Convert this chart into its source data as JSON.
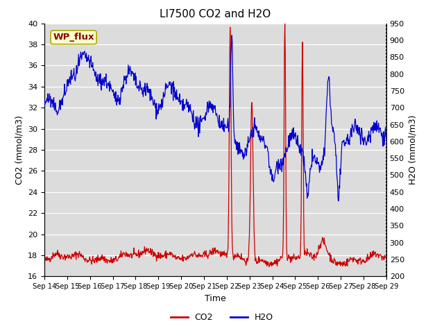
{
  "title": "LI7500 CO2 and H2O",
  "xlabel": "Time",
  "ylabel_left": "CO2 (mmol/m3)",
  "ylabel_right": "H2O (mmol/m3)",
  "annotation": "WP_flux",
  "co2_color": "#cc0000",
  "h2o_color": "#0000cc",
  "background_color": "#dcdcdc",
  "ylim_left": [
    16,
    40
  ],
  "ylim_right": [
    200,
    950
  ],
  "yticks_left": [
    16,
    18,
    20,
    22,
    24,
    26,
    28,
    30,
    32,
    34,
    36,
    38,
    40
  ],
  "yticks_right": [
    200,
    250,
    300,
    350,
    400,
    450,
    500,
    550,
    600,
    650,
    700,
    750,
    800,
    850,
    900,
    950
  ],
  "xtick_labels": [
    "Sep 14",
    "Sep 15",
    "Sep 16",
    "Sep 17",
    "Sep 18",
    "Sep 19",
    "Sep 20",
    "Sep 21",
    "Sep 22",
    "Sep 23",
    "Sep 24",
    "Sep 25",
    "Sep 26",
    "Sep 27",
    "Sep 28",
    "Sep 29"
  ],
  "figsize": [
    6.4,
    4.8
  ],
  "dpi": 100
}
